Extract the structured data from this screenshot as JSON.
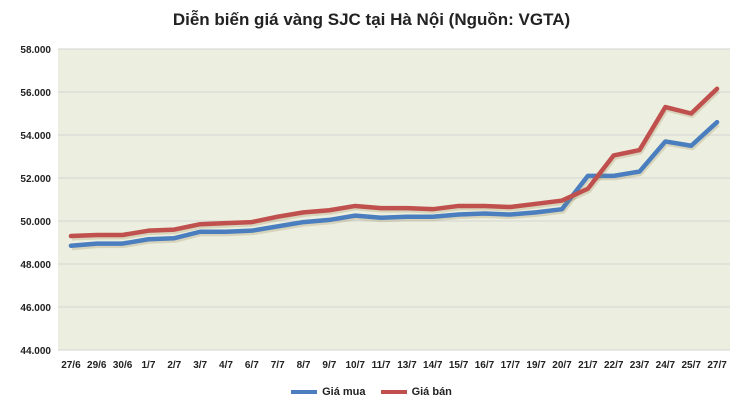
{
  "chart_data": {
    "type": "line",
    "title": "Diễn biến giá vàng SJC tại Hà Nội (Nguồn: VGTA)",
    "xlabel": "",
    "ylabel": "",
    "ylim": [
      44000,
      58000
    ],
    "yticks": [
      "44.000",
      "46.000",
      "48.000",
      "50.000",
      "52.000",
      "54.000",
      "56.000",
      "58.000"
    ],
    "ytick_values": [
      44000,
      46000,
      48000,
      50000,
      52000,
      54000,
      56000,
      58000
    ],
    "grid": true,
    "legend": "bottom",
    "plot_background": "#ecefdf",
    "categories": [
      "27/6",
      "29/6",
      "30/6",
      "1/7",
      "2/7",
      "3/7",
      "4/7",
      "6/7",
      "7/7",
      "8/7",
      "9/7",
      "10/7",
      "11/7",
      "13/7",
      "14/7",
      "15/7",
      "16/7",
      "17/7",
      "19/7",
      "20/7",
      "21/7",
      "22/7",
      "23/7",
      "24/7",
      "25/7",
      "27/7"
    ],
    "series": [
      {
        "name": "Giá mua",
        "color": "#4a7ebf",
        "values": [
          48850,
          48950,
          48950,
          49150,
          49200,
          49500,
          49500,
          49550,
          49750,
          49950,
          50050,
          50250,
          50150,
          50200,
          50200,
          50300,
          50350,
          50300,
          50400,
          50550,
          52100,
          52100,
          52300,
          53700,
          53500,
          54600
        ]
      },
      {
        "name": "Giá bán",
        "color": "#c0504d",
        "values": [
          49300,
          49350,
          49350,
          49550,
          49600,
          49850,
          49900,
          49950,
          50200,
          50400,
          50500,
          50700,
          50600,
          50600,
          50550,
          50700,
          50700,
          50650,
          50800,
          50950,
          51500,
          53050,
          53300,
          55300,
          55000,
          56150
        ]
      }
    ]
  }
}
